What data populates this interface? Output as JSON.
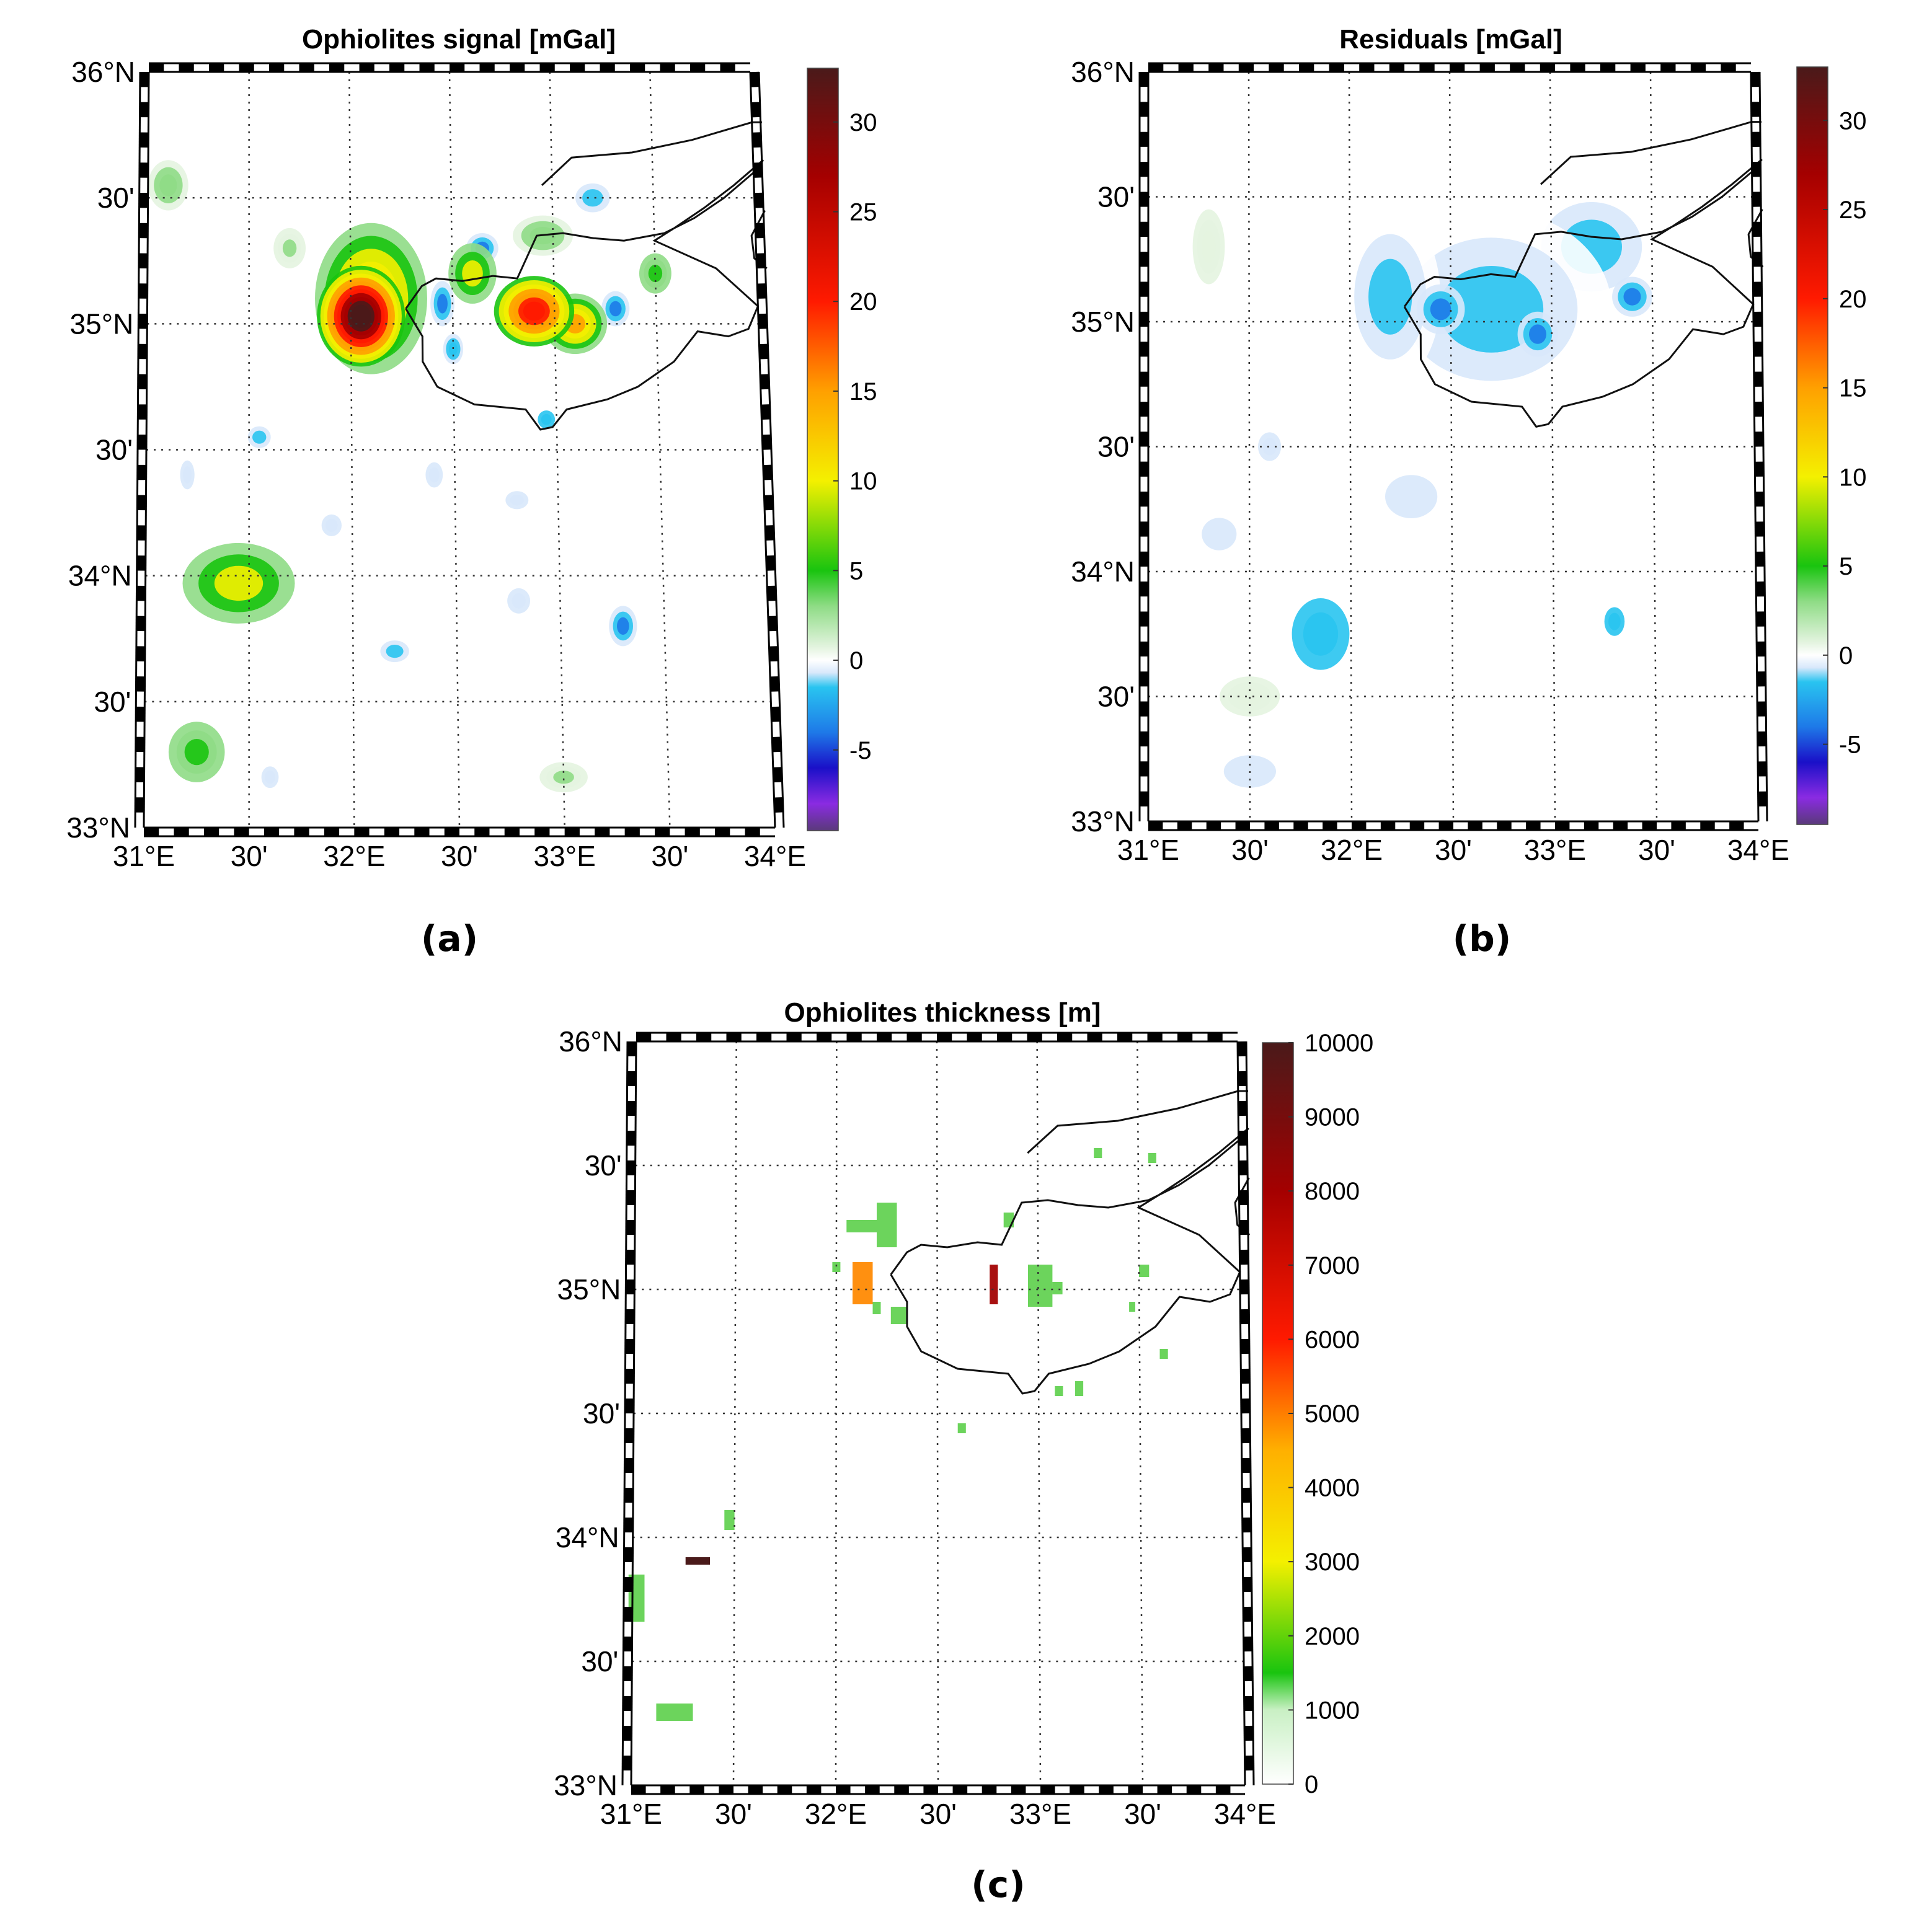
{
  "panels": [
    {
      "id": "a",
      "title": "Ophiolites signal [mGal]",
      "caption": "(a)",
      "colorbar": {
        "ticks": [
          "30",
          "25",
          "20",
          "15",
          "10",
          "5",
          "0",
          "-5"
        ],
        "range": [
          -9.5,
          33
        ]
      }
    },
    {
      "id": "b",
      "title": "Residuals [mGal]",
      "caption": "(b)",
      "colorbar": {
        "ticks": [
          "30",
          "25",
          "20",
          "15",
          "10",
          "5",
          "0",
          "-5"
        ],
        "range": [
          -9.5,
          33
        ]
      }
    },
    {
      "id": "c",
      "title": "Ophiolites thickness [m]",
      "caption": "(c)",
      "colorbar": {
        "ticks": [
          "10000",
          "9000",
          "8000",
          "7000",
          "6000",
          "5000",
          "4000",
          "3000",
          "2000",
          "1000",
          "0"
        ],
        "range": [
          0,
          10000
        ]
      }
    }
  ],
  "axes": {
    "lat_ticks": [
      "36°N",
      "30'",
      "35°N",
      "30'",
      "34°N",
      "30'",
      "33°N"
    ],
    "lon_ticks": [
      "31°E",
      "30'",
      "32°E",
      "30'",
      "33°E",
      "30'",
      "34°E"
    ],
    "lat_range": [
      33,
      36
    ],
    "lon_range": [
      31,
      34
    ]
  },
  "colors": {
    "coast": "#111111",
    "grid": "#333333",
    "frame": "#000000",
    "thin_patch": "#6cd45c",
    "orange_patch": "#ff9010",
    "red_patch": "#a81010",
    "dark_patch": "#4a1a1a"
  },
  "chart_data": [
    {
      "type": "heatmap",
      "title": "Ophiolites signal [mGal]",
      "value_range": [
        -9.5,
        33
      ],
      "features": [
        {
          "lon": 32.05,
          "lat": 35.03,
          "value": 32
        },
        {
          "lon": 32.9,
          "lat": 35.05,
          "value": 22
        },
        {
          "lon": 32.55,
          "lat": 35.2,
          "value": 7
        },
        {
          "lon": 31.45,
          "lat": 33.97,
          "value": 10
        },
        {
          "lon": 31.25,
          "lat": 33.3,
          "value": 6
        },
        {
          "lon": 33.3,
          "lat": 35.06,
          "value": -7
        },
        {
          "lon": 32.45,
          "lat": 35.06,
          "value": -7
        },
        {
          "lon": 33.3,
          "lat": 33.8,
          "value": -6
        }
      ]
    },
    {
      "type": "heatmap",
      "title": "Residuals [mGal]",
      "value_range": [
        -9.5,
        33
      ],
      "features": [
        {
          "lon": 32.45,
          "lat": 35.05,
          "value": -7.5
        },
        {
          "lon": 32.93,
          "lat": 34.95,
          "value": -6.5
        },
        {
          "lon": 33.4,
          "lat": 35.1,
          "value": -6
        },
        {
          "lon": 31.85,
          "lat": 33.75,
          "value": -3.5
        },
        {
          "lon": 33.3,
          "lat": 33.8,
          "value": -3.5
        }
      ]
    },
    {
      "type": "heatmap",
      "title": "Ophiolites thickness [m]",
      "value_range": [
        0,
        10000
      ],
      "cells": [
        {
          "lon": 32.1,
          "lat": 35.05,
          "value": 5000
        },
        {
          "lon": 32.78,
          "lat": 35.03,
          "value": 9000
        },
        {
          "lon": 31.33,
          "lat": 33.92,
          "value": 10000
        },
        {
          "lon": 32.3,
          "lat": 35.25,
          "value": 1500
        },
        {
          "lon": 32.98,
          "lat": 35.05,
          "value": 1500
        },
        {
          "lon": 31.0,
          "lat": 33.7,
          "value": 1500
        },
        {
          "lon": 31.2,
          "lat": 33.3,
          "value": 1500
        }
      ]
    }
  ]
}
